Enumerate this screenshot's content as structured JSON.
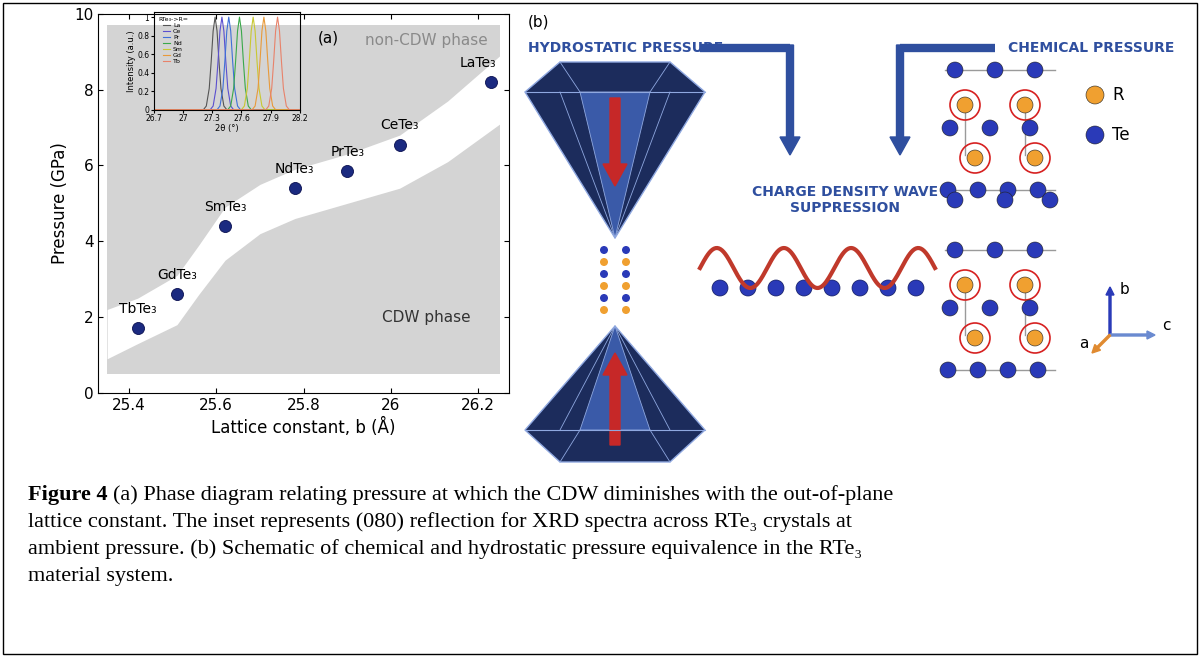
{
  "chart_data": [
    {
      "type": "scatter",
      "panel_label": "(a)",
      "xlabel": "Lattice constant, b (Å)",
      "ylabel": "Pressure (GPa)",
      "x": [
        25.42,
        25.51,
        25.62,
        25.78,
        25.9,
        26.02,
        26.23
      ],
      "values": [
        1.7,
        2.6,
        4.4,
        5.4,
        5.85,
        6.55,
        8.2
      ],
      "point_labels": [
        "TbTe₃",
        "GdTe₃",
        "SmTe₃",
        "NdTe₃",
        "PrTe₃",
        "CeTe₃",
        "LaTe₃"
      ],
      "color": "#1b2a80",
      "marker": "o",
      "xlim": [
        25.33,
        26.27
      ],
      "ylim": [
        0,
        10
      ],
      "xticks": [
        25.4,
        25.6,
        25.8,
        26,
        26.2
      ],
      "yticks": [
        0,
        2,
        4,
        6,
        8,
        10
      ],
      "region_labels": [
        "non-CDW phase",
        "CDW phase"
      ],
      "phase_region": {
        "x": [
          25.35,
          26.25
        ],
        "y": [
          0.5,
          9.7
        ],
        "color": "#d4d4d4"
      },
      "transition_band": {
        "x": [
          25.35,
          25.42,
          25.51,
          25.56,
          25.62,
          25.7,
          25.78,
          25.9,
          26.02,
          26.13,
          26.25
        ],
        "lower": [
          0.9,
          1.3,
          1.8,
          2.6,
          3.5,
          4.2,
          4.6,
          5.0,
          5.4,
          6.1,
          7.1
        ],
        "upper": [
          2.2,
          2.5,
          3.1,
          3.9,
          4.9,
          5.5,
          5.9,
          6.3,
          6.8,
          7.7,
          8.9
        ],
        "color": "#ffffff"
      }
    },
    {
      "type": "line",
      "xlabel": "2θ (°)",
      "ylabel": "Intensity (a.u.)",
      "legend_title": "RTe₃->R=",
      "legend": "upper left",
      "xlim": [
        26.7,
        28.2
      ],
      "ylim": [
        0,
        1.05
      ],
      "xticks": [
        26.7,
        27,
        27.3,
        27.6,
        27.9,
        28.2
      ],
      "yticks": [
        0,
        0.2,
        0.4,
        0.6,
        0.8,
        1
      ],
      "series": [
        {
          "name": "La",
          "color": "#555555",
          "x": [
            26.7,
            27.21,
            27.24,
            27.27,
            27.29,
            27.31,
            27.33,
            27.35,
            27.37,
            27.39,
            27.42,
            27.45,
            28.2
          ],
          "values": [
            0,
            0,
            0.04,
            0.23,
            0.52,
            0.85,
            1,
            0.85,
            0.52,
            0.23,
            0.04,
            0,
            0
          ]
        },
        {
          "name": "Ce",
          "color": "#5b4fcf",
          "x": [
            26.7,
            27.28,
            27.31,
            27.34,
            27.36,
            27.38,
            27.4,
            27.42,
            27.44,
            27.46,
            27.49,
            27.52,
            28.2
          ],
          "values": [
            0,
            0,
            0.04,
            0.23,
            0.52,
            0.85,
            1,
            0.85,
            0.52,
            0.23,
            0.04,
            0,
            0
          ]
        },
        {
          "name": "Pr",
          "color": "#3f6fd8",
          "x": [
            26.7,
            27.35,
            27.38,
            27.41,
            27.43,
            27.45,
            27.47,
            27.49,
            27.51,
            27.53,
            27.56,
            27.59,
            28.2
          ],
          "values": [
            0,
            0,
            0.04,
            0.23,
            0.52,
            0.85,
            1,
            0.85,
            0.52,
            0.23,
            0.04,
            0,
            0
          ]
        },
        {
          "name": "Nd",
          "color": "#3aa84a",
          "x": [
            26.7,
            27.46,
            27.49,
            27.52,
            27.54,
            27.56,
            27.58,
            27.6,
            27.62,
            27.64,
            27.67,
            27.7,
            28.2
          ],
          "values": [
            0,
            0,
            0.04,
            0.23,
            0.52,
            0.85,
            1,
            0.85,
            0.52,
            0.23,
            0.04,
            0,
            0
          ]
        },
        {
          "name": "Sm",
          "color": "#c8c832",
          "x": [
            26.7,
            27.6,
            27.63,
            27.66,
            27.68,
            27.7,
            27.72,
            27.74,
            27.76,
            27.78,
            27.81,
            27.84,
            28.2
          ],
          "values": [
            0,
            0,
            0.04,
            0.23,
            0.52,
            0.85,
            1,
            0.85,
            0.52,
            0.23,
            0.04,
            0,
            0
          ]
        },
        {
          "name": "Gd",
          "color": "#e89a3a",
          "x": [
            26.7,
            27.71,
            27.74,
            27.77,
            27.79,
            27.81,
            27.83,
            27.85,
            27.87,
            27.89,
            27.92,
            27.95,
            28.2
          ],
          "values": [
            0,
            0,
            0.04,
            0.23,
            0.52,
            0.85,
            1,
            0.85,
            0.52,
            0.23,
            0.04,
            0,
            0
          ]
        },
        {
          "name": "Tb",
          "color": "#e8826a",
          "x": [
            26.7,
            27.85,
            27.88,
            27.91,
            27.93,
            27.95,
            27.97,
            27.99,
            28.01,
            28.03,
            28.06,
            28.09,
            28.2
          ],
          "values": [
            0,
            0,
            0.04,
            0.23,
            0.52,
            0.85,
            1,
            0.85,
            0.52,
            0.23,
            0.04,
            0,
            0
          ]
        }
      ]
    }
  ],
  "diagram": {
    "panel_label": "(b)",
    "hydrostatic_label": "HYDROSTATIC PRESSURE",
    "chemical_label": "CHEMICAL PRESSURE",
    "result_label": "CHARGE DENSITY WAVE\nSUPPRESSION",
    "legend": [
      {
        "name": "R",
        "color": "#f0a030"
      },
      {
        "name": "Te",
        "color": "#2a3ab8"
      }
    ],
    "axis_labels": [
      "b",
      "a",
      "c"
    ]
  },
  "caption": {
    "label": "Figure 4",
    "lines": [
      "(a) Phase diagram relating pressure at which the CDW diminishes with the out-of-plane",
      "lattice constant. The inset represents (080) reflection for XRD spectra across RTe₃ crystals at",
      "ambient pressure. (b) Schematic of chemical and hydrostatic pressure equivalence in the RTe₃",
      "material system."
    ]
  }
}
